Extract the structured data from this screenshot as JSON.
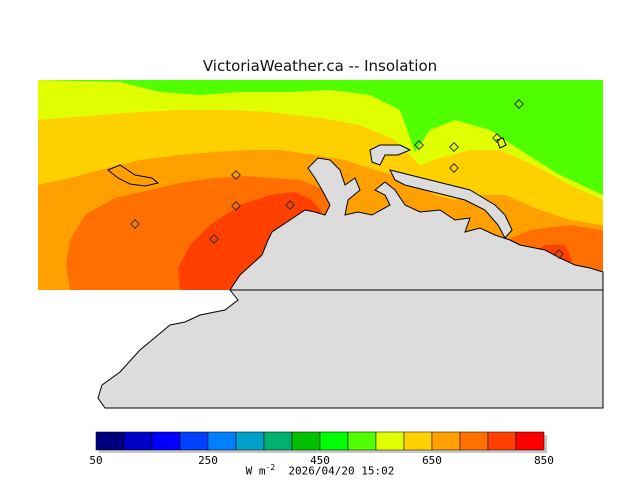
{
  "title": "VictoriaWeather.ca -- Insolation",
  "colorbar": {
    "min_label": "50",
    "ticks": [
      "50",
      "250",
      "450",
      "650",
      "850"
    ],
    "colors": [
      "#00007f",
      "#0000c8",
      "#0000ff",
      "#0040ff",
      "#0080ff",
      "#00a0c8",
      "#00b070",
      "#00c000",
      "#00ff00",
      "#50ff00",
      "#e0ff00",
      "#ffd000",
      "#ffa000",
      "#ff7000",
      "#ff4000",
      "#ff0000"
    ],
    "unit_base": "W m",
    "unit_exp": "-2",
    "timestamp": "2026/04/20 15:02"
  },
  "map": {
    "land_color": "#dcdcdc",
    "contour_colors": {
      "green": "#50ff00",
      "yellow_green": "#e0ff00",
      "yellow": "#ffd000",
      "orange": "#ffa000",
      "dark_orange": "#ff7000",
      "red_orange": "#ff4000"
    },
    "stations": [
      "station-1",
      "station-2",
      "station-3",
      "station-4",
      "station-5",
      "station-6",
      "station-7",
      "station-8",
      "station-9",
      "station-10",
      "station-11"
    ]
  }
}
